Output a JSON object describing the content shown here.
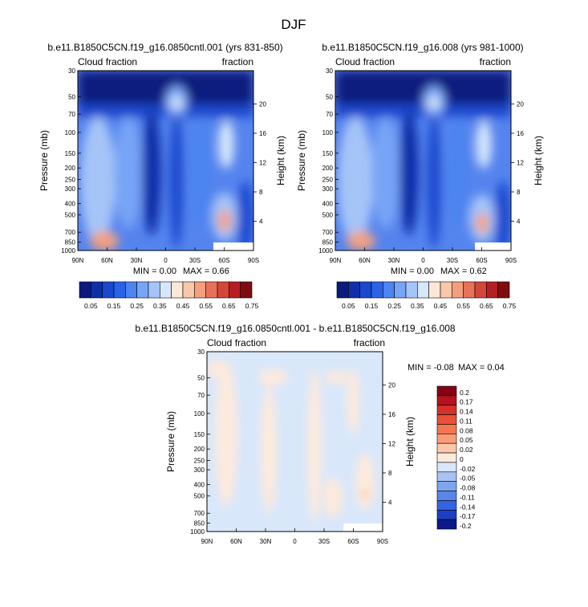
{
  "title": "DJF",
  "chart_data": [
    {
      "type": "heatmap",
      "title": "b.e11.B1850C5CN.f19_g16.0850cntl.001 (yrs 831-850)",
      "left_label": "Cloud fraction",
      "right_label": "fraction",
      "ylabel": "Pressure (mb)",
      "y2label": "Height (km)",
      "x_ticks": [
        "90N",
        "60N",
        "30N",
        "0",
        "30S",
        "60S",
        "90S"
      ],
      "y_ticks": [
        "30",
        "50",
        "70",
        "100",
        "150",
        "200",
        "250",
        "300",
        "400",
        "500",
        "700",
        "850",
        "1000"
      ],
      "y2_ticks": [
        "20",
        "16",
        "12",
        "8",
        "4"
      ],
      "min_label": "MIN =  0.00",
      "max_label": "MAX =  0.66",
      "min": 0.0,
      "max": 0.66,
      "levels": [
        0.05,
        0.1,
        0.15,
        0.2,
        0.25,
        0.3,
        0.35,
        0.4,
        0.45,
        0.5,
        0.55,
        0.6,
        0.65,
        0.7,
        0.75
      ],
      "colorbar_labels": [
        "0.05",
        "0.15",
        "0.25",
        "0.35",
        "0.45",
        "0.55",
        "0.65",
        "0.75"
      ]
    },
    {
      "type": "heatmap",
      "title": "b.e11.B1850C5CN.f19_g16.008 (yrs 981-1000)",
      "left_label": "Cloud fraction",
      "right_label": "fraction",
      "ylabel": "Pressure (mb)",
      "y2label": "Height (km)",
      "x_ticks": [
        "90N",
        "60N",
        "30N",
        "0",
        "30S",
        "60S",
        "90S"
      ],
      "y_ticks": [
        "30",
        "50",
        "70",
        "100",
        "150",
        "200",
        "250",
        "300",
        "400",
        "500",
        "700",
        "850",
        "1000"
      ],
      "y2_ticks": [
        "20",
        "16",
        "12",
        "8",
        "4"
      ],
      "min_label": "MIN =  0.00",
      "max_label": "MAX =  0.62",
      "min": 0.0,
      "max": 0.62,
      "levels": [
        0.05,
        0.1,
        0.15,
        0.2,
        0.25,
        0.3,
        0.35,
        0.4,
        0.45,
        0.5,
        0.55,
        0.6,
        0.65,
        0.7,
        0.75
      ],
      "colorbar_labels": [
        "0.05",
        "0.15",
        "0.25",
        "0.35",
        "0.45",
        "0.55",
        "0.65",
        "0.75"
      ]
    },
    {
      "type": "heatmap",
      "title": "b.e11.B1850C5CN.f19_g16.0850cntl.001 - b.e11.B1850C5CN.f19_g16.008",
      "left_label": "Cloud fraction",
      "right_label": "fraction",
      "ylabel": "Pressure (mb)",
      "y2label": "Height (km)",
      "x_ticks": [
        "90N",
        "60N",
        "30N",
        "0",
        "30S",
        "60S",
        "90S"
      ],
      "y_ticks": [
        "30",
        "50",
        "70",
        "100",
        "150",
        "200",
        "250",
        "300",
        "400",
        "500",
        "700",
        "850",
        "1000"
      ],
      "y2_ticks": [
        "20",
        "16",
        "12",
        "8",
        "4"
      ],
      "min_label": "MIN = -0.08",
      "max_label": "MAX =  0.04",
      "min": -0.08,
      "max": 0.04,
      "levels": [
        0.2,
        0.17,
        0.14,
        0.11,
        0.08,
        0.05,
        0.02,
        0,
        -0.02,
        -0.05,
        -0.08,
        -0.11,
        -0.14,
        -0.17,
        -0.2
      ],
      "colorbar_labels": [
        "0.2",
        "0.17",
        "0.14",
        "0.11",
        "0.08",
        "0.05",
        "0.02",
        "0",
        "-0.02",
        "-0.05",
        "-0.08",
        "-0.11",
        "-0.14",
        "-0.17",
        "-0.2"
      ]
    }
  ],
  "colors": {
    "abs_scale": [
      "#0a1a7e",
      "#0f2fa8",
      "#1a49cf",
      "#2a63e6",
      "#4c84f0",
      "#77a4f6",
      "#a5c4f8",
      "#d6e6fb",
      "#fde8d8",
      "#f9c7a9",
      "#f4a07e",
      "#e8715a",
      "#d5463a",
      "#b51f24",
      "#7f0d10"
    ],
    "diff_scale": [
      "#880014",
      "#b5111e",
      "#d6302a",
      "#ea5138",
      "#f5764f",
      "#f99c77",
      "#fbc9aa",
      "#fdeade",
      "#d9e7fa",
      "#a6c3f5",
      "#7ea5f0",
      "#5a86eb",
      "#3564e0",
      "#1c3fc2",
      "#0a1a8a"
    ]
  }
}
